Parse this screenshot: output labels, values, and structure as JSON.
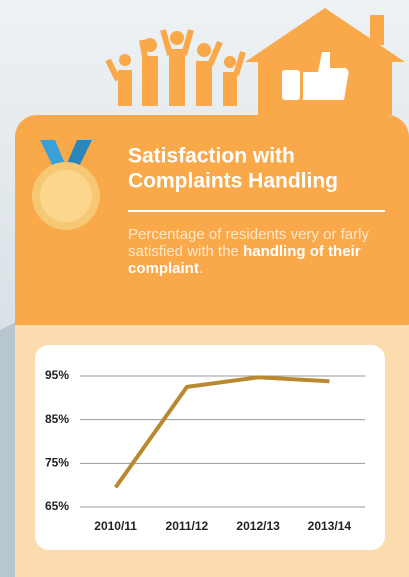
{
  "chart_data": {
    "type": "line",
    "title_lines": [
      "Satisfaction with",
      "Complaints Handling"
    ],
    "subtitle_parts": [
      "Percentage of residents very or farly satisfied with the ",
      "handling of their complaint",
      "."
    ],
    "categories": [
      "2010/11",
      "2011/12",
      "2012/13",
      "2013/14"
    ],
    "series": [
      {
        "color": "#b8892f",
        "values": [
          69.5,
          92.5,
          94.7,
          93.8
        ]
      }
    ],
    "ylim": [
      65,
      95
    ],
    "yticks": [
      {
        "value": 65,
        "label": "65%"
      },
      {
        "value": 75,
        "label": "75%"
      },
      {
        "value": 85,
        "label": "85%"
      },
      {
        "value": 95,
        "label": "95%"
      }
    ],
    "grid": true
  }
}
